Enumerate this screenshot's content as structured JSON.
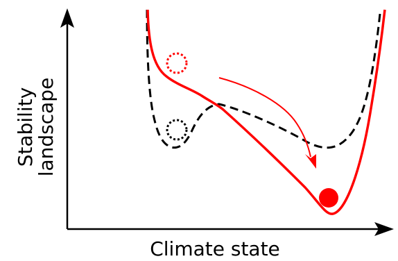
{
  "axes": {
    "x_label": "Climate state",
    "y_label_line1": "Stability",
    "y_label_line2": "landscape"
  },
  "colors": {
    "axis": "#000000",
    "current_landscape": "#ff0000",
    "previous_landscape": "#000000",
    "ball": "#ff0000",
    "former_state_marker_red": "#ff0000",
    "former_state_marker_black": "#000000"
  },
  "curves": {
    "current_landscape_style": "solid",
    "previous_landscape_style": "dashed"
  }
}
